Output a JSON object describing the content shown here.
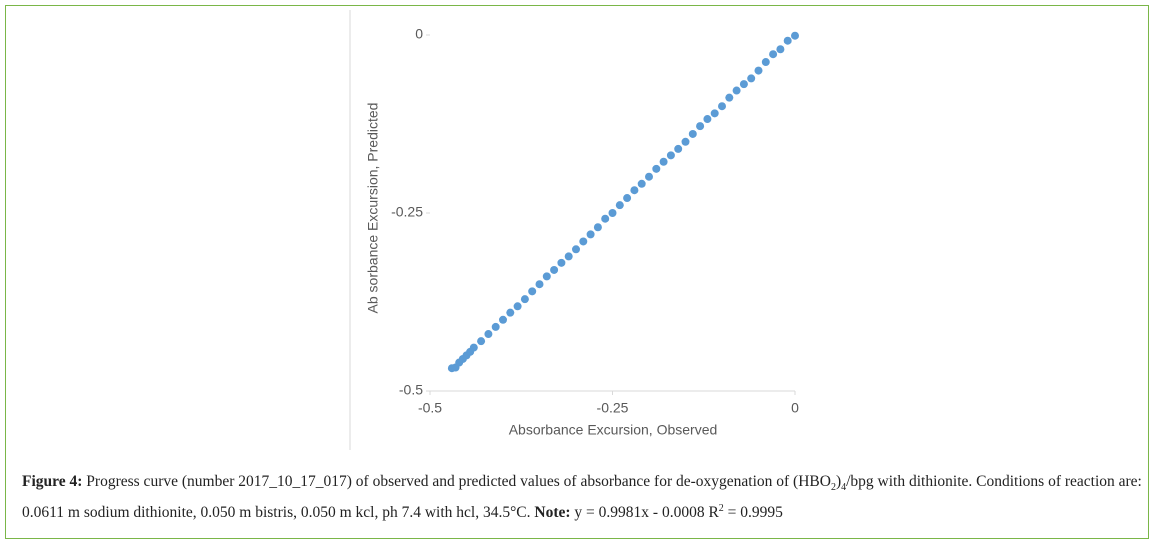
{
  "chart_data": {
    "type": "scatter",
    "x_label": "Absorbance Excursion, Observed",
    "y_label": "Ab sorbance Excursion, Predicted",
    "color": "#5b9bd5",
    "xlim": [
      -0.5,
      0
    ],
    "xticks": [
      -0.5,
      -0.25,
      0
    ],
    "ylim": [
      -0.5,
      0
    ],
    "yticks": [
      -0.5,
      -0.25,
      0
    ],
    "x": [
      -0.47,
      -0.465,
      -0.46,
      -0.455,
      -0.45,
      -0.445,
      -0.44,
      -0.43,
      -0.42,
      -0.41,
      -0.4,
      -0.39,
      -0.38,
      -0.37,
      -0.36,
      -0.35,
      -0.34,
      -0.33,
      -0.32,
      -0.31,
      -0.3,
      -0.29,
      -0.28,
      -0.27,
      -0.26,
      -0.25,
      -0.24,
      -0.23,
      -0.22,
      -0.21,
      -0.2,
      -0.19,
      -0.18,
      -0.17,
      -0.16,
      -0.15,
      -0.14,
      -0.13,
      -0.12,
      -0.11,
      -0.1,
      -0.09,
      -0.08,
      -0.07,
      -0.06,
      -0.05,
      -0.04,
      -0.03,
      -0.02,
      -0.01,
      0
    ],
    "values": [
      -0.468,
      -0.467,
      -0.46,
      -0.455,
      -0.45,
      -0.445,
      -0.439,
      -0.43,
      -0.42,
      -0.41,
      -0.4,
      -0.39,
      -0.381,
      -0.371,
      -0.36,
      -0.35,
      -0.339,
      -0.33,
      -0.32,
      -0.311,
      -0.301,
      -0.29,
      -0.28,
      -0.27,
      -0.258,
      -0.25,
      -0.239,
      -0.229,
      -0.218,
      -0.209,
      -0.199,
      -0.188,
      -0.178,
      -0.169,
      -0.16,
      -0.15,
      -0.139,
      -0.128,
      -0.118,
      -0.11,
      -0.1,
      -0.088,
      -0.078,
      -0.069,
      -0.061,
      -0.05,
      -0.038,
      -0.027,
      -0.02,
      -0.008,
      -0.001
    ]
  },
  "caption": [
    {
      "text": "Figure 4:",
      "style": "bold"
    },
    {
      "text": " Progress curve (number 2017_10_17_017) of observed and predicted values of absorbance for de-oxygenation of (HBO"
    },
    {
      "text": "2",
      "style": "sub"
    },
    {
      "text": ")"
    },
    {
      "text": "4",
      "style": "sub"
    },
    {
      "text": "/bpg with dithionite. Conditions of reaction are: 0.0611 m sodium dithionite, 0.050 m bistris, 0.050 m kcl, ph 7.4 with hcl, 34.5°C. "
    },
    {
      "text": "Note:",
      "style": "bold"
    },
    {
      "text": " y = 0.9981x - 0.0008 R"
    },
    {
      "text": "2",
      "style": "sup"
    },
    {
      "text": " = 0.9995"
    }
  ]
}
